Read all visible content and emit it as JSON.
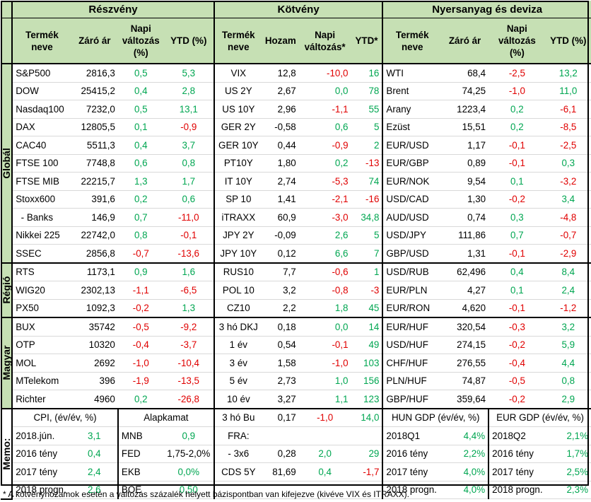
{
  "sections": {
    "stocks": "Részvény",
    "bonds": "Kötvény",
    "commodities": "Nyersanyag és deviza"
  },
  "columns": {
    "product": "Termék neve",
    "close": "Záró ár",
    "daily_pct": "Napi változás (%)",
    "ytd_pct": "YTD (%)",
    "yield": "Hozam",
    "daily_star": "Napi változás*",
    "ytd_star": "YTD*"
  },
  "groups": {
    "global": "Globál",
    "region": "Régió",
    "hungary": "Magyar",
    "memo": "Memo:"
  },
  "colors": {
    "header_bg": "#c6e0b4",
    "positive": "#00a651",
    "negative": "#e00000"
  },
  "rows": [
    {
      "s": [
        "S&P500",
        "2816,3",
        "0,5",
        "5,3"
      ],
      "b": [
        "VIX",
        "12,8",
        "-10,0",
        "16"
      ],
      "c": [
        "WTI",
        "68,4",
        "-2,5",
        "13,2"
      ]
    },
    {
      "s": [
        "DOW",
        "25415,2",
        "0,4",
        "2,8"
      ],
      "b": [
        "US 2Y",
        "2,67",
        "0,0",
        "78"
      ],
      "c": [
        "Brent",
        "74,25",
        "-1,0",
        "11,0"
      ]
    },
    {
      "s": [
        "Nasdaq100",
        "7232,0",
        "0,5",
        "13,1"
      ],
      "b": [
        "US 10Y",
        "2,96",
        "-1,1",
        "55"
      ],
      "c": [
        "Arany",
        "1223,4",
        "0,2",
        "-6,1"
      ]
    },
    {
      "s": [
        "DAX",
        "12805,5",
        "0,1",
        "-0,9"
      ],
      "b": [
        "GER 2Y",
        "-0,58",
        "0,6",
        "5"
      ],
      "c": [
        "Ezüst",
        "15,51",
        "0,2",
        "-8,5"
      ]
    },
    {
      "s": [
        "CAC40",
        "5511,3",
        "0,4",
        "3,7"
      ],
      "b": [
        "GER 10Y",
        "0,44",
        "-0,9",
        "2"
      ],
      "c": [
        "EUR/USD",
        "1,17",
        "-0,1",
        "-2,5"
      ]
    },
    {
      "s": [
        "FTSE 100",
        "7748,8",
        "0,6",
        "0,8"
      ],
      "b": [
        "PT10Y",
        "1,80",
        "0,2",
        "-13"
      ],
      "c": [
        "EUR/GBP",
        "0,89",
        "-0,1",
        "0,3"
      ]
    },
    {
      "s": [
        "FTSE MIB",
        "22215,7",
        "1,3",
        "1,7"
      ],
      "b": [
        "IT 10Y",
        "2,74",
        "-5,3",
        "74"
      ],
      "c": [
        "EUR/NOK",
        "9,54",
        "0,1",
        "-3,2"
      ]
    },
    {
      "s": [
        "Stoxx600",
        "391,6",
        "0,2",
        "0,6"
      ],
      "b": [
        "SP 10",
        "1,41",
        "-2,1",
        "-16"
      ],
      "c": [
        "USD/CAD",
        "1,30",
        "-0,2",
        "3,4"
      ]
    },
    {
      "s": [
        "  - Banks",
        "146,9",
        "0,7",
        "-11,0"
      ],
      "b": [
        "iTRAXX",
        "60,9",
        "-3,0",
        "34,8"
      ],
      "c": [
        "AUD/USD",
        "0,74",
        "0,3",
        "-4,8"
      ]
    },
    {
      "s": [
        "Nikkei 225",
        "22742,0",
        "0,8",
        "-0,1"
      ],
      "b": [
        "JPY 2Y",
        "-0,09",
        "2,6",
        "5"
      ],
      "c": [
        "USD/JPY",
        "111,86",
        "0,7",
        "-0,7"
      ]
    },
    {
      "s": [
        "SSEC",
        "2856,8",
        "-0,7",
        "-13,6"
      ],
      "b": [
        "JPY 10Y",
        "0,12",
        "6,6",
        "7"
      ],
      "c": [
        "GBP/USD",
        "1,31",
        "-0,1",
        "-2,9"
      ]
    },
    {
      "s": [
        "RTS",
        "1173,1",
        "0,9",
        "1,6"
      ],
      "b": [
        "RUS10",
        "7,7",
        "-0,6",
        "1"
      ],
      "c": [
        "USD/RUB",
        "62,496",
        "0,4",
        "8,4"
      ]
    },
    {
      "s": [
        "WIG20",
        "2302,13",
        "-1,1",
        "-6,5"
      ],
      "b": [
        "POL 10",
        "3,2",
        "-0,8",
        "-3"
      ],
      "c": [
        "EUR/PLN",
        "4,27",
        "0,1",
        "2,4"
      ]
    },
    {
      "s": [
        "PX50",
        "1092,3",
        "-0,2",
        "1,3"
      ],
      "b": [
        "CZ10",
        "2,2",
        "1,8",
        "45"
      ],
      "c": [
        "EUR/RON",
        "4,620",
        "-0,1",
        "-1,2"
      ]
    },
    {
      "s": [
        "BUX",
        "35742",
        "-0,5",
        "-9,2"
      ],
      "b": [
        "3 hó DKJ",
        "0,18",
        "0,0",
        "14"
      ],
      "c": [
        "EUR/HUF",
        "320,54",
        "-0,3",
        "3,2"
      ]
    },
    {
      "s": [
        "OTP",
        "10320",
        "-0,4",
        "-3,7"
      ],
      "b": [
        "1 év",
        "0,54",
        "-0,1",
        "49"
      ],
      "c": [
        "USD/HUF",
        "274,15",
        "-0,2",
        "5,9"
      ]
    },
    {
      "s": [
        "MOL",
        "2692",
        "-1,0",
        "-10,4"
      ],
      "b": [
        "3 év",
        "1,58",
        "-1,0",
        "103"
      ],
      "c": [
        "CHF/HUF",
        "276,55",
        "-0,4",
        "4,4"
      ]
    },
    {
      "s": [
        "MTelekom",
        "396",
        "-1,9",
        "-13,5"
      ],
      "b": [
        "5 év",
        "2,73",
        "1,0",
        "156"
      ],
      "c": [
        "PLN/HUF",
        "74,87",
        "-0,5",
        "0,8"
      ]
    },
    {
      "s": [
        "Richter",
        "4960",
        "0,2",
        "-26,8"
      ],
      "b": [
        "10 év",
        "3,27",
        "1,1",
        "123"
      ],
      "c": [
        "GBP/HUF",
        "359,64",
        "-0,2",
        "2,9"
      ]
    }
  ],
  "memo": {
    "cpi_header": "CPI, (év/év, %)",
    "rate_header": "Alapkamat",
    "hun_gdp_header": "HUN GDP (év/év, %)",
    "eur_gdp_header": "EUR GDP (év/év, %)",
    "rows": [
      {
        "cpi": [
          "2018.jún.",
          "3,1"
        ],
        "rate": [
          "MNB",
          "0,9"
        ],
        "bond": [
          "3 hó Bu",
          "0,17",
          "-1,0",
          "14,0"
        ],
        "hun": [
          "2018Q1",
          "4,4%"
        ],
        "eur": [
          "2018Q2",
          "2,1%"
        ]
      },
      {
        "cpi": [
          "2016 tény",
          "0,4"
        ],
        "rate": [
          "FED",
          "1,75-2,0%"
        ],
        "bond": [
          "FRA:",
          "",
          "",
          ""
        ],
        "hun": [
          "2016 tény",
          "2,2%"
        ],
        "eur": [
          "2016 tény",
          "1,7%"
        ]
      },
      {
        "cpi": [
          "2017 tény",
          "2,4"
        ],
        "rate": [
          "EKB",
          "0,0%"
        ],
        "bond": [
          "- 3x6",
          "0,28",
          "2,0",
          "29"
        ],
        "hun": [
          "2017 tény",
          "4,0%"
        ],
        "eur": [
          "2017 tény",
          "2,5%"
        ]
      },
      {
        "cpi": [
          "2018 progn.",
          "2,6"
        ],
        "rate": [
          "BOE",
          "0,50"
        ],
        "bond": [
          "CDS 5Y",
          "81,69",
          "0,4",
          "-1,7"
        ],
        "hun": [
          "2018 progn.",
          "4,0%"
        ],
        "eur": [
          "2018 progn.",
          "2,3%"
        ]
      }
    ]
  },
  "footnote": "* A kötvényhozamok esetén a változás százalék helyett bázispontban van kifejezve (kivéve VIX és ITRAXX)."
}
